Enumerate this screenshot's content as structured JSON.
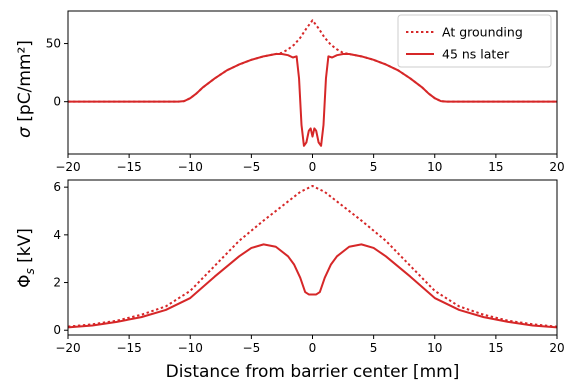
{
  "chart_data": [
    {
      "type": "line",
      "title": "",
      "ylabel_symbol": "σ",
      "ylabel_unit": "[pC/mm²]",
      "xlabel": "",
      "xlim": [
        -20,
        20
      ],
      "ylim": [
        -45,
        78
      ],
      "grid": false,
      "legend": {
        "placement": "top-right",
        "entries": [
          "At grounding",
          "45 ns later"
        ]
      },
      "xticks": [
        -20,
        -15,
        -10,
        -5,
        0,
        5,
        10,
        15,
        20
      ],
      "xtick_labels": [
        "−20",
        "−15",
        "−10",
        "−5",
        "0",
        "5",
        "10",
        "15",
        "20"
      ],
      "yticks": [
        0,
        50
      ],
      "ytick_labels": [
        "0",
        "50"
      ],
      "series": [
        {
          "name": "At grounding",
          "color": "#d62728",
          "style": "dotted",
          "x": [
            -20,
            -12,
            -11,
            -10.5,
            -10,
            -9.5,
            -9,
            -8,
            -7,
            -6,
            -5,
            -4,
            -3,
            -2.5,
            -2,
            -1.5,
            -1,
            -0.5,
            0,
            0.5,
            1,
            1.5,
            2,
            2.5,
            3,
            4,
            5,
            6,
            7,
            8,
            9,
            9.5,
            10,
            10.5,
            11,
            12,
            20
          ],
          "y": [
            0,
            0,
            0,
            0.5,
            3,
            7,
            12,
            20,
            27,
            32,
            36,
            39,
            41,
            42,
            45,
            49,
            55,
            63,
            70,
            63,
            55,
            49,
            45,
            42,
            41,
            39,
            36,
            32,
            27,
            20,
            12,
            7,
            3,
            0.5,
            0,
            0,
            0
          ]
        },
        {
          "name": "45 ns later",
          "color": "#d62728",
          "style": "solid",
          "x": [
            -20,
            -12,
            -11,
            -10.5,
            -10,
            -9.5,
            -9,
            -8,
            -7,
            -6,
            -5,
            -4,
            -3,
            -2.5,
            -2,
            -1.6,
            -1.3,
            -1.1,
            -0.9,
            -0.7,
            -0.5,
            -0.3,
            -0.15,
            0,
            0.15,
            0.3,
            0.5,
            0.7,
            0.9,
            1.1,
            1.3,
            1.6,
            2,
            2.5,
            3,
            4,
            5,
            6,
            7,
            8,
            9,
            9.5,
            10,
            10.5,
            11,
            12,
            20
          ],
          "y": [
            0,
            0,
            0,
            0.5,
            3,
            7,
            12,
            20,
            27,
            32,
            36,
            39,
            41,
            41,
            40,
            38,
            39,
            20,
            -20,
            -38,
            -35,
            -25,
            -23,
            -30,
            -23,
            -25,
            -35,
            -38,
            -20,
            20,
            39,
            38,
            40,
            41,
            41,
            39,
            36,
            32,
            27,
            20,
            12,
            7,
            3,
            0.5,
            0,
            0,
            0
          ]
        }
      ]
    },
    {
      "type": "line",
      "title": "",
      "ylabel_symbol": "Φ",
      "ylabel_sub": "s",
      "ylabel_unit": "[kV]",
      "xlabel": "Distance from barrier center [mm]",
      "xlim": [
        -20,
        20
      ],
      "ylim": [
        -0.2,
        6.3
      ],
      "grid": false,
      "xticks": [
        -20,
        -15,
        -10,
        -5,
        0,
        5,
        10,
        15,
        20
      ],
      "xtick_labels": [
        "−20",
        "−15",
        "−10",
        "−5",
        "0",
        "5",
        "10",
        "15",
        "20"
      ],
      "yticks": [
        0,
        2,
        4,
        6
      ],
      "ytick_labels": [
        "0",
        "2",
        "4",
        "6"
      ],
      "series": [
        {
          "name": "At grounding",
          "color": "#d62728",
          "style": "dotted",
          "x": [
            -20,
            -18,
            -16,
            -14,
            -12,
            -10,
            -8,
            -6,
            -4,
            -2,
            -1,
            0,
            1,
            2,
            4,
            6,
            8,
            10,
            12,
            14,
            16,
            18,
            20
          ],
          "y": [
            0.15,
            0.25,
            0.4,
            0.65,
            1.0,
            1.65,
            2.7,
            3.75,
            4.6,
            5.4,
            5.8,
            6.05,
            5.8,
            5.4,
            4.6,
            3.75,
            2.7,
            1.65,
            1.0,
            0.65,
            0.4,
            0.25,
            0.15
          ]
        },
        {
          "name": "45 ns later",
          "color": "#d62728",
          "style": "solid",
          "x": [
            -20,
            -18,
            -16,
            -14,
            -12,
            -10,
            -8,
            -6,
            -5,
            -4,
            -3,
            -2,
            -1.5,
            -1,
            -0.6,
            -0.3,
            0,
            0.3,
            0.6,
            1,
            1.5,
            2,
            3,
            4,
            5,
            6,
            8,
            10,
            12,
            14,
            16,
            18,
            20
          ],
          "y": [
            0.12,
            0.2,
            0.35,
            0.55,
            0.85,
            1.35,
            2.25,
            3.1,
            3.45,
            3.6,
            3.5,
            3.1,
            2.75,
            2.2,
            1.6,
            1.5,
            1.5,
            1.5,
            1.6,
            2.2,
            2.75,
            3.1,
            3.5,
            3.6,
            3.45,
            3.1,
            2.25,
            1.35,
            0.85,
            0.55,
            0.35,
            0.2,
            0.12
          ]
        }
      ]
    }
  ]
}
